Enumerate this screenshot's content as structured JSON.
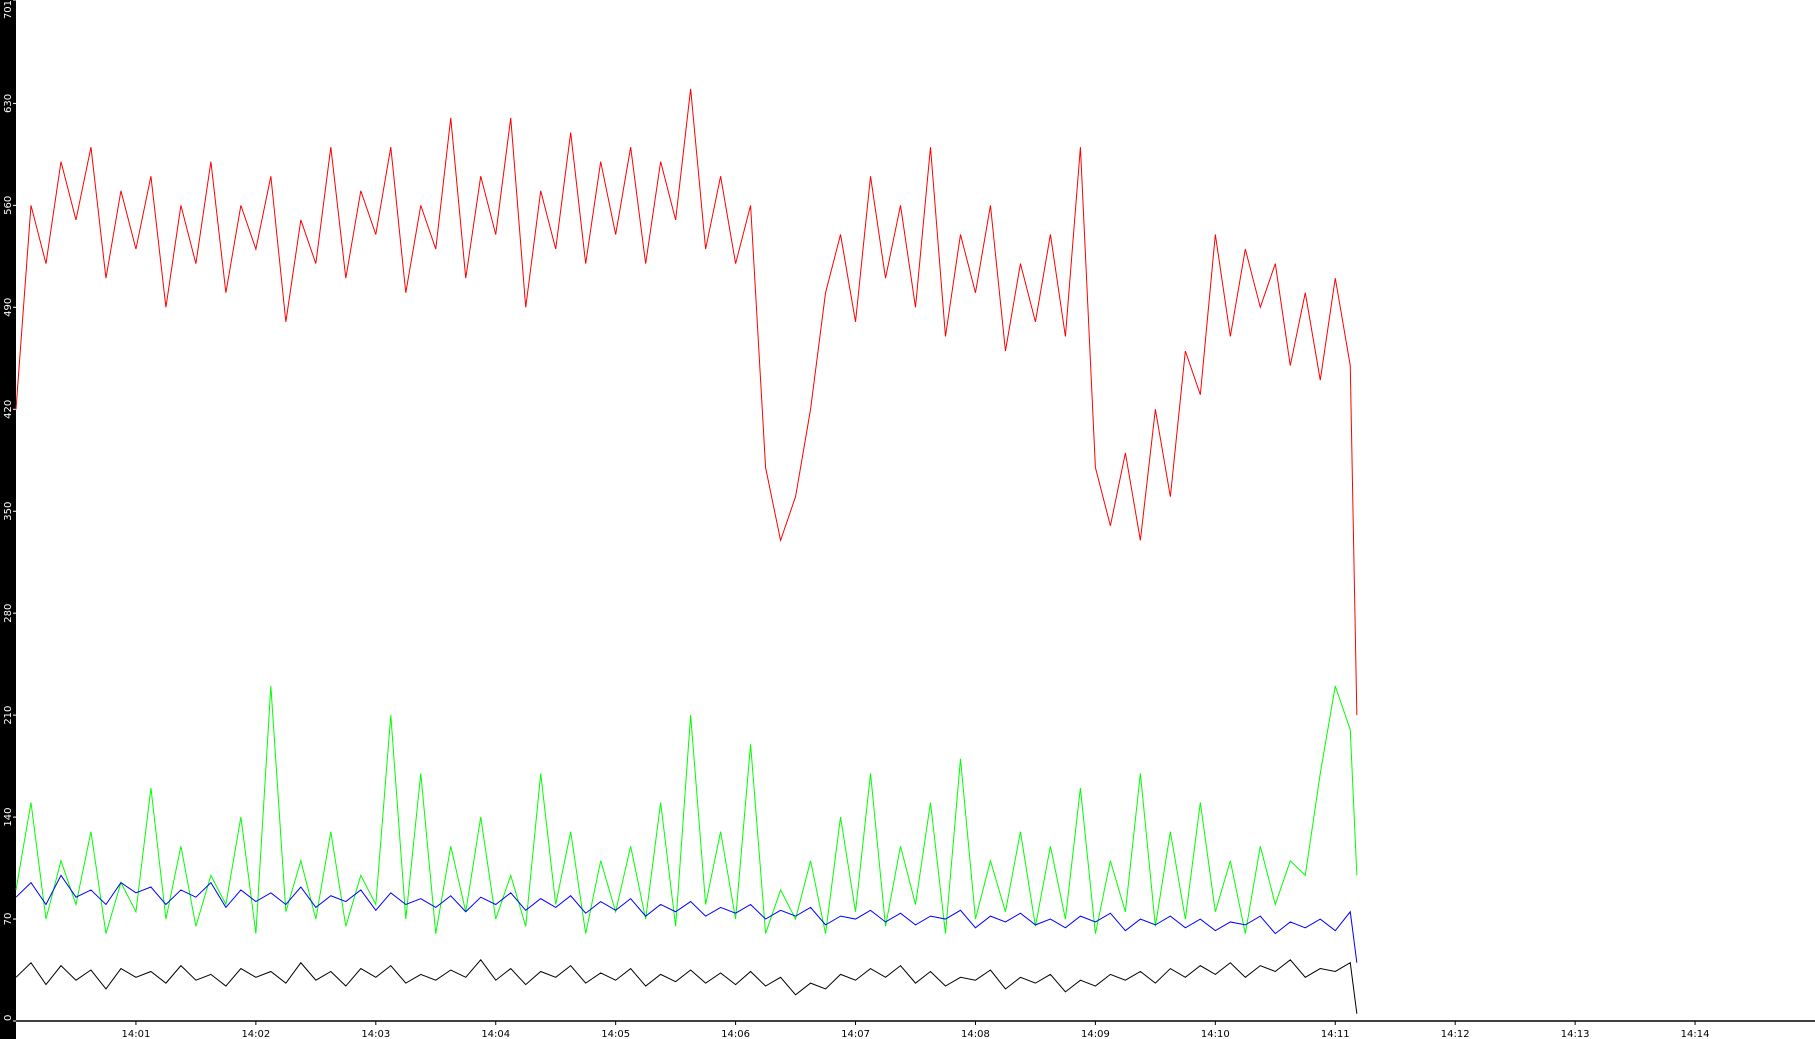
{
  "chart_data": {
    "type": "line",
    "x": [
      0,
      0.125,
      0.25,
      0.375,
      0.5,
      0.625,
      0.75,
      0.875,
      1,
      1.125,
      1.25,
      1.375,
      1.5,
      1.625,
      1.75,
      1.875,
      2,
      2.125,
      2.25,
      2.375,
      2.5,
      2.625,
      2.75,
      2.875,
      3,
      3.125,
      3.25,
      3.375,
      3.5,
      3.625,
      3.75,
      3.875,
      4,
      4.125,
      4.25,
      4.375,
      4.5,
      4.625,
      4.75,
      4.875,
      5,
      5.125,
      5.25,
      5.375,
      5.5,
      5.625,
      5.75,
      5.875,
      6,
      6.125,
      6.25,
      6.375,
      6.5,
      6.625,
      6.75,
      6.875,
      7,
      7.125,
      7.25,
      7.375,
      7.5,
      7.625,
      7.75,
      7.875,
      8,
      8.125,
      8.25,
      8.375,
      8.5,
      8.625,
      8.75,
      8.875,
      9,
      9.125,
      9.25,
      9.375,
      9.5,
      9.625,
      9.75,
      9.875,
      10,
      10.125,
      10.25,
      10.375,
      10.5,
      10.625,
      10.75,
      10.875,
      11,
      11.125,
      11.18
    ],
    "series": [
      {
        "color": "#ff0000",
        "values": [
          420,
          560,
          520,
          590,
          550,
          600,
          510,
          570,
          530,
          580,
          490,
          560,
          520,
          590,
          500,
          560,
          530,
          580,
          480,
          550,
          520,
          600,
          510,
          570,
          540,
          600,
          500,
          560,
          530,
          620,
          510,
          580,
          540,
          620,
          490,
          570,
          530,
          610,
          520,
          590,
          540,
          600,
          520,
          590,
          550,
          640,
          530,
          580,
          520,
          560,
          380,
          330,
          360,
          420,
          500,
          540,
          480,
          580,
          510,
          560,
          490,
          600,
          470,
          540,
          500,
          560,
          460,
          520,
          480,
          540,
          470,
          600,
          380,
          340,
          390,
          330,
          420,
          360,
          460,
          430,
          540,
          470,
          530,
          490,
          520,
          450,
          500,
          440,
          510,
          450,
          210
        ]
      },
      {
        "color": "#00ff00",
        "values": [
          90,
          150,
          70,
          110,
          80,
          130,
          60,
          95,
          75,
          160,
          70,
          120,
          65,
          100,
          80,
          140,
          60,
          230,
          75,
          110,
          70,
          130,
          65,
          100,
          80,
          210,
          70,
          170,
          60,
          120,
          75,
          140,
          70,
          100,
          65,
          170,
          80,
          130,
          60,
          110,
          75,
          120,
          70,
          150,
          65,
          210,
          80,
          130,
          70,
          190,
          60,
          90,
          70,
          110,
          60,
          140,
          75,
          170,
          65,
          120,
          80,
          150,
          60,
          180,
          70,
          110,
          75,
          130,
          65,
          120,
          70,
          160,
          60,
          110,
          75,
          170,
          65,
          130,
          70,
          150,
          75,
          110,
          60,
          120,
          80,
          110,
          100,
          170,
          230,
          200,
          100
        ]
      },
      {
        "color": "#0000ff",
        "values": [
          85,
          95,
          80,
          100,
          85,
          90,
          80,
          95,
          88,
          92,
          80,
          90,
          85,
          95,
          78,
          90,
          82,
          88,
          80,
          92,
          78,
          86,
          82,
          90,
          76,
          88,
          80,
          84,
          78,
          86,
          75,
          85,
          80,
          88,
          76,
          84,
          78,
          86,
          74,
          82,
          76,
          84,
          72,
          80,
          75,
          82,
          72,
          78,
          74,
          80,
          70,
          76,
          72,
          78,
          66,
          72,
          70,
          76,
          68,
          74,
          66,
          72,
          70,
          76,
          64,
          72,
          68,
          74,
          66,
          70,
          64,
          72,
          68,
          74,
          62,
          70,
          66,
          72,
          64,
          70,
          62,
          68,
          66,
          72,
          60,
          68,
          64,
          70,
          62,
          75,
          40
        ]
      },
      {
        "color": "#000000",
        "values": [
          30,
          40,
          25,
          38,
          28,
          35,
          22,
          36,
          30,
          34,
          26,
          38,
          28,
          32,
          24,
          36,
          30,
          34,
          26,
          40,
          28,
          34,
          24,
          36,
          30,
          38,
          26,
          32,
          28,
          35,
          30,
          42,
          28,
          36,
          25,
          34,
          30,
          38,
          26,
          33,
          28,
          36,
          24,
          32,
          27,
          35,
          26,
          33,
          25,
          34,
          24,
          30,
          18,
          26,
          22,
          32,
          28,
          36,
          30,
          38,
          26,
          34,
          24,
          30,
          28,
          35,
          22,
          30,
          26,
          32,
          20,
          28,
          24,
          32,
          28,
          34,
          26,
          36,
          30,
          38,
          32,
          40,
          30,
          38,
          34,
          42,
          30,
          36,
          34,
          40,
          5
        ]
      }
    ],
    "xlim": [
      0,
      15
    ],
    "xticks": [
      {
        "value": 1,
        "label": "14:01"
      },
      {
        "value": 2,
        "label": "14:02"
      },
      {
        "value": 3,
        "label": "14:03"
      },
      {
        "value": 4,
        "label": "14:04"
      },
      {
        "value": 5,
        "label": "14:05"
      },
      {
        "value": 6,
        "label": "14:06"
      },
      {
        "value": 7,
        "label": "14:07"
      },
      {
        "value": 8,
        "label": "14:08"
      },
      {
        "value": 9,
        "label": "14:09"
      },
      {
        "value": 10,
        "label": "14:10"
      },
      {
        "value": 11,
        "label": "14:11"
      },
      {
        "value": 12,
        "label": "14:12"
      },
      {
        "value": 13,
        "label": "14:13"
      },
      {
        "value": 14,
        "label": "14:14"
      }
    ],
    "ylim": [
      0,
      701
    ],
    "yticks": [
      0,
      70,
      140,
      210,
      280,
      350,
      420,
      490,
      560,
      630,
      701
    ]
  }
}
